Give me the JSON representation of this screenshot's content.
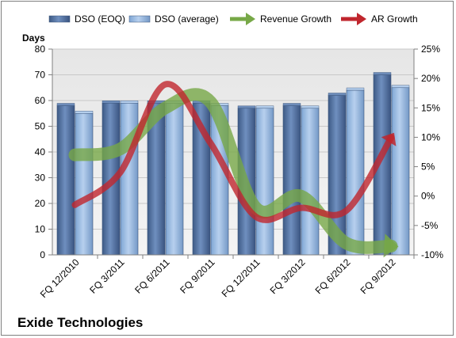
{
  "chart_data": {
    "type": "bar",
    "title": "Exide Technologies",
    "ylabel": "Days",
    "categories": [
      "FQ 12/2010",
      "FQ 3/2011",
      "FQ 6/2011",
      "FQ 9/2011",
      "FQ 12/2011",
      "FQ 3/2012",
      "FQ 6/2012",
      "FQ 9/2012"
    ],
    "ylim": [
      0,
      80
    ],
    "y_ticks": [
      "0",
      "10",
      "20",
      "30",
      "40",
      "50",
      "60",
      "70",
      "80"
    ],
    "y2lim": [
      -10,
      25
    ],
    "y2_ticks": [
      "-10%",
      "-5%",
      "0%",
      "5%",
      "10%",
      "15%",
      "20%",
      "25%"
    ],
    "series": [
      {
        "name": "DSO (EOQ)",
        "type": "bar",
        "axis": "left",
        "color": "#4f6d9a",
        "values": [
          58,
          59,
          59,
          59,
          57,
          58,
          62,
          70
        ]
      },
      {
        "name": "DSO (average)",
        "type": "bar",
        "axis": "left",
        "color": "#8db3e2",
        "values": [
          55,
          59,
          59,
          58,
          57,
          57,
          64,
          65
        ]
      },
      {
        "name": "Revenue Growth",
        "type": "arrow-line",
        "axis": "right",
        "color": "#77a847",
        "values": [
          7,
          8,
          15,
          16,
          -2,
          0,
          -8,
          -8.5
        ]
      },
      {
        "name": "AR Growth",
        "type": "arrow-line",
        "axis": "right",
        "color": "#c0262d",
        "values": [
          -1.5,
          4,
          19,
          9,
          -3.5,
          -2,
          -2.5,
          10
        ]
      }
    ],
    "grid": true,
    "legend": "top"
  }
}
